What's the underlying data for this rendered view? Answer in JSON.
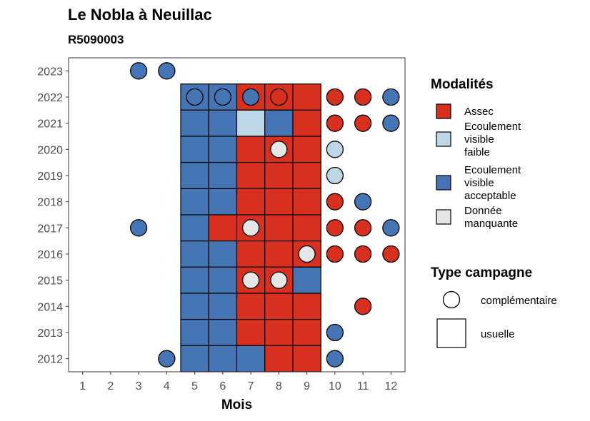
{
  "title": "Le Nobla à Neuillac",
  "subtitle": "R5090003",
  "chart_data": {
    "type": "heatmap",
    "xlabel": "Mois",
    "ylabel": "",
    "x_ticks": [
      1,
      2,
      3,
      4,
      5,
      6,
      7,
      8,
      9,
      10,
      11,
      12
    ],
    "y_ticks": [
      2012,
      2013,
      2014,
      2015,
      2016,
      2017,
      2018,
      2019,
      2020,
      2021,
      2022,
      2023
    ],
    "xlim": [
      0.5,
      12.5
    ],
    "ylim": [
      2011.5,
      2023.5
    ],
    "colors": {
      "assec": "#d7301f",
      "faible": "#bdd7e7",
      "acceptable": "#4575b4",
      "manquante": "#e6e6e6"
    },
    "legend_modalites": {
      "title": "Modalités",
      "entries": [
        {
          "key": "assec",
          "label": "Assec"
        },
        {
          "key": "faible",
          "label": "Ecoulement visible faible"
        },
        {
          "key": "acceptable",
          "label": "Ecoulement visible acceptable"
        },
        {
          "key": "manquante",
          "label": "Donnée manquante"
        }
      ]
    },
    "legend_type": {
      "title": "Type campagne",
      "entries": [
        {
          "key": "complementaire",
          "label": "complémentaire"
        },
        {
          "key": "usuelle",
          "label": "usuelle"
        }
      ]
    },
    "usuelle": [
      {
        "year": 2022,
        "month": 5,
        "value": "acceptable"
      },
      {
        "year": 2022,
        "month": 6,
        "value": "acceptable"
      },
      {
        "year": 2022,
        "month": 7,
        "value": "assec"
      },
      {
        "year": 2022,
        "month": 8,
        "value": "assec"
      },
      {
        "year": 2022,
        "month": 9,
        "value": "assec"
      },
      {
        "year": 2021,
        "month": 5,
        "value": "acceptable"
      },
      {
        "year": 2021,
        "month": 6,
        "value": "acceptable"
      },
      {
        "year": 2021,
        "month": 7,
        "value": "faible"
      },
      {
        "year": 2021,
        "month": 8,
        "value": "acceptable"
      },
      {
        "year": 2021,
        "month": 9,
        "value": "assec"
      },
      {
        "year": 2020,
        "month": 5,
        "value": "acceptable"
      },
      {
        "year": 2020,
        "month": 6,
        "value": "acceptable"
      },
      {
        "year": 2020,
        "month": 7,
        "value": "assec"
      },
      {
        "year": 2020,
        "month": 8,
        "value": "assec"
      },
      {
        "year": 2020,
        "month": 9,
        "value": "assec"
      },
      {
        "year": 2019,
        "month": 5,
        "value": "acceptable"
      },
      {
        "year": 2019,
        "month": 6,
        "value": "acceptable"
      },
      {
        "year": 2019,
        "month": 7,
        "value": "assec"
      },
      {
        "year": 2019,
        "month": 8,
        "value": "assec"
      },
      {
        "year": 2019,
        "month": 9,
        "value": "assec"
      },
      {
        "year": 2018,
        "month": 5,
        "value": "acceptable"
      },
      {
        "year": 2018,
        "month": 6,
        "value": "acceptable"
      },
      {
        "year": 2018,
        "month": 7,
        "value": "assec"
      },
      {
        "year": 2018,
        "month": 8,
        "value": "assec"
      },
      {
        "year": 2018,
        "month": 9,
        "value": "assec"
      },
      {
        "year": 2017,
        "month": 5,
        "value": "acceptable"
      },
      {
        "year": 2017,
        "month": 6,
        "value": "assec"
      },
      {
        "year": 2017,
        "month": 7,
        "value": "assec"
      },
      {
        "year": 2017,
        "month": 8,
        "value": "assec"
      },
      {
        "year": 2017,
        "month": 9,
        "value": "assec"
      },
      {
        "year": 2016,
        "month": 5,
        "value": "acceptable"
      },
      {
        "year": 2016,
        "month": 6,
        "value": "acceptable"
      },
      {
        "year": 2016,
        "month": 7,
        "value": "assec"
      },
      {
        "year": 2016,
        "month": 8,
        "value": "assec"
      },
      {
        "year": 2016,
        "month": 9,
        "value": "assec"
      },
      {
        "year": 2015,
        "month": 5,
        "value": "acceptable"
      },
      {
        "year": 2015,
        "month": 6,
        "value": "acceptable"
      },
      {
        "year": 2015,
        "month": 7,
        "value": "assec"
      },
      {
        "year": 2015,
        "month": 8,
        "value": "assec"
      },
      {
        "year": 2015,
        "month": 9,
        "value": "acceptable"
      },
      {
        "year": 2014,
        "month": 5,
        "value": "acceptable"
      },
      {
        "year": 2014,
        "month": 6,
        "value": "acceptable"
      },
      {
        "year": 2014,
        "month": 7,
        "value": "assec"
      },
      {
        "year": 2014,
        "month": 8,
        "value": "assec"
      },
      {
        "year": 2014,
        "month": 9,
        "value": "assec"
      },
      {
        "year": 2013,
        "month": 5,
        "value": "acceptable"
      },
      {
        "year": 2013,
        "month": 6,
        "value": "acceptable"
      },
      {
        "year": 2013,
        "month": 7,
        "value": "assec"
      },
      {
        "year": 2013,
        "month": 8,
        "value": "assec"
      },
      {
        "year": 2013,
        "month": 9,
        "value": "assec"
      },
      {
        "year": 2012,
        "month": 5,
        "value": "acceptable"
      },
      {
        "year": 2012,
        "month": 6,
        "value": "acceptable"
      },
      {
        "year": 2012,
        "month": 7,
        "value": "acceptable"
      },
      {
        "year": 2012,
        "month": 8,
        "value": "assec"
      },
      {
        "year": 2012,
        "month": 9,
        "value": "assec"
      }
    ],
    "complementaire": [
      {
        "year": 2023,
        "month": 3,
        "value": "acceptable"
      },
      {
        "year": 2023,
        "month": 4,
        "value": "acceptable"
      },
      {
        "year": 2022,
        "month": 5,
        "value": "acceptable"
      },
      {
        "year": 2022,
        "month": 6,
        "value": "acceptable"
      },
      {
        "year": 2022,
        "month": 7,
        "value": "acceptable"
      },
      {
        "year": 2022,
        "month": 8,
        "value": "assec"
      },
      {
        "year": 2022,
        "month": 10,
        "value": "assec"
      },
      {
        "year": 2022,
        "month": 11,
        "value": "assec"
      },
      {
        "year": 2022,
        "month": 12,
        "value": "acceptable"
      },
      {
        "year": 2021,
        "month": 10,
        "value": "assec"
      },
      {
        "year": 2021,
        "month": 11,
        "value": "assec"
      },
      {
        "year": 2021,
        "month": 12,
        "value": "acceptable"
      },
      {
        "year": 2020,
        "month": 8,
        "value": "manquante"
      },
      {
        "year": 2020,
        "month": 10,
        "value": "faible"
      },
      {
        "year": 2019,
        "month": 10,
        "value": "faible"
      },
      {
        "year": 2018,
        "month": 10,
        "value": "assec"
      },
      {
        "year": 2018,
        "month": 11,
        "value": "acceptable"
      },
      {
        "year": 2017,
        "month": 3,
        "value": "acceptable"
      },
      {
        "year": 2017,
        "month": 7,
        "value": "manquante"
      },
      {
        "year": 2017,
        "month": 10,
        "value": "assec"
      },
      {
        "year": 2017,
        "month": 11,
        "value": "assec"
      },
      {
        "year": 2017,
        "month": 12,
        "value": "acceptable"
      },
      {
        "year": 2016,
        "month": 9,
        "value": "manquante"
      },
      {
        "year": 2016,
        "month": 10,
        "value": "assec"
      },
      {
        "year": 2016,
        "month": 11,
        "value": "assec"
      },
      {
        "year": 2016,
        "month": 12,
        "value": "assec"
      },
      {
        "year": 2015,
        "month": 7,
        "value": "manquante"
      },
      {
        "year": 2015,
        "month": 8,
        "value": "manquante"
      },
      {
        "year": 2014,
        "month": 11,
        "value": "assec"
      },
      {
        "year": 2013,
        "month": 10,
        "value": "acceptable"
      },
      {
        "year": 2012,
        "month": 4,
        "value": "acceptable"
      },
      {
        "year": 2012,
        "month": 10,
        "value": "acceptable"
      }
    ]
  }
}
